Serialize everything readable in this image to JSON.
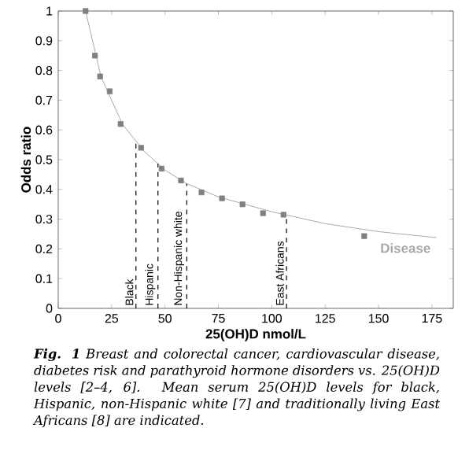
{
  "chart_data": {
    "type": "scatter",
    "xlabel": "25(OH)D nmol/L",
    "ylabel": "Odds ratio",
    "xlim": [
      0,
      185
    ],
    "ylim": [
      0,
      1
    ],
    "xticks": [
      0,
      25,
      50,
      75,
      100,
      125,
      150,
      175
    ],
    "yticks": [
      0,
      0.1,
      0.2,
      0.3,
      0.4,
      0.5,
      0.6,
      0.7,
      0.8,
      0.9,
      1
    ],
    "grid": false,
    "marker": "square",
    "series": [
      {
        "color": "#808080",
        "x": [
          12.8,
          17.2,
          19.6,
          24.1,
          29.2,
          38.8,
          48.4,
          57.5,
          67.1,
          76.7,
          86.3,
          95.9,
          105.5,
          143.3
        ],
        "values": [
          1.0,
          0.85,
          0.78,
          0.73,
          0.62,
          0.54,
          0.47,
          0.43,
          0.39,
          0.37,
          0.35,
          0.32,
          0.315,
          0.243
        ]
      },
      {
        "type": "line",
        "name": "Disease",
        "color": "#a8a8a8",
        "marker": "none",
        "line_style": "solid",
        "x": [
          12.8,
          20,
          30,
          40,
          50,
          60,
          75,
          100,
          125,
          150,
          177
        ],
        "values": [
          1.0,
          0.78,
          0.62,
          0.53,
          0.465,
          0.42,
          0.375,
          0.325,
          0.285,
          0.258,
          0.238
        ]
      }
    ],
    "ref_lines": [
      {
        "axis": "x",
        "value": 36.4,
        "label": "Black",
        "color": "#000000",
        "line_style": "dashed"
      },
      {
        "axis": "x",
        "value": 46.7,
        "label": "Hispanic",
        "color": "#000000",
        "line_style": "dashed"
      },
      {
        "axis": "x",
        "value": 60.2,
        "label": "Non-Hispanic white",
        "color": "#000000",
        "line_style": "dashed"
      },
      {
        "axis": "x",
        "value": 106.9,
        "label": "East Africans",
        "color": "#000000",
        "line_style": "dashed"
      }
    ],
    "annotations": [
      "**Fig. 1** Breast and colorectal cancer, cardiovascular disease, diabetes risk and parathyroid hormone disorders vs. 25(OH)D levels [2–4, 6]. Mean serum 25(OH)D levels for black, Hispanic, non-Hispanic white [7] and traditionally living East Africans [8] are indicated."
    ]
  }
}
